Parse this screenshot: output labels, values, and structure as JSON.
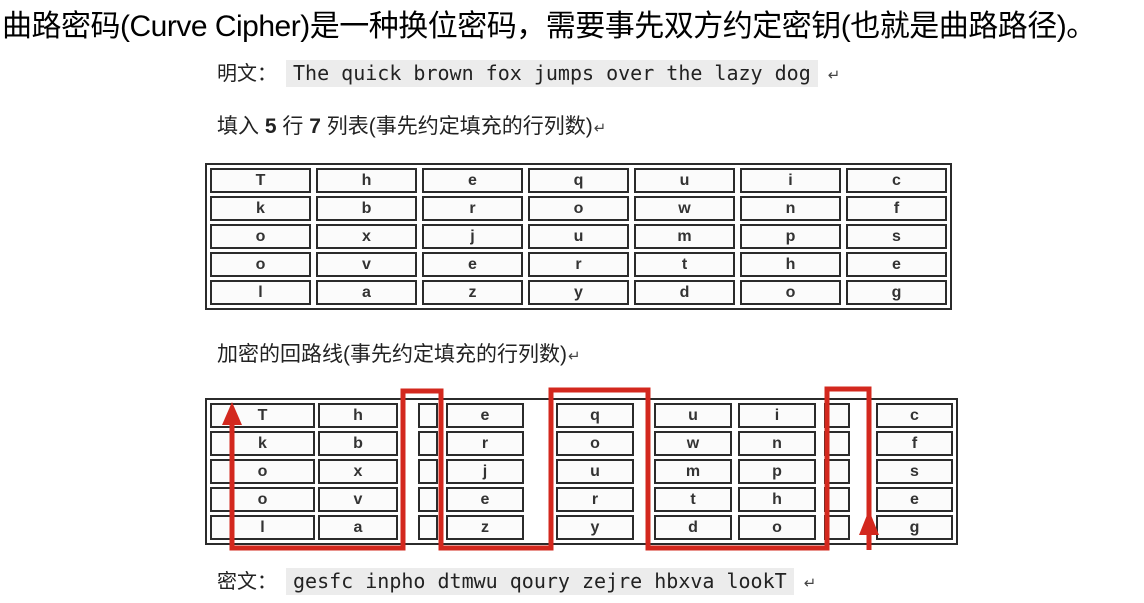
{
  "title": "曲路密码(Curve Cipher)是一种换位密码，需要事先双方约定密钥(也就是曲路路径)。",
  "plaintext": {
    "label": "明文：",
    "value": "The quick brown fox jumps over the lazy dog",
    "return_mark": "↵"
  },
  "fill_heading": {
    "prefix": "填入 ",
    "rows": "5",
    "mid": " 行 ",
    "cols": "7",
    "suffix": " 列表(事先约定填充的行列数)",
    "return_mark": "↵"
  },
  "route_heading": {
    "text": "加密的回路线(事先约定填充的行列数)",
    "return_mark": "↵"
  },
  "ciphertext": {
    "label": "密文：",
    "value": "gesfc inpho dtmwu qoury zejre hbxva lookT",
    "return_mark": "↵"
  },
  "grid": {
    "rows": [
      [
        "T",
        "h",
        "e",
        "q",
        "u",
        "i",
        "c"
      ],
      [
        "k",
        "b",
        "r",
        "o",
        "w",
        "n",
        "f"
      ],
      [
        "o",
        "x",
        "j",
        "u",
        "m",
        "p",
        "s"
      ],
      [
        "o",
        "v",
        "e",
        "r",
        "t",
        "h",
        "e"
      ],
      [
        "l",
        "a",
        "z",
        "y",
        "d",
        "o",
        "g"
      ]
    ]
  },
  "route_path": {
    "color": "#d3281e",
    "description": "red serpentine route: up column 7, down column 6, up column 5, down column 4, up column 3, down column 2, up column 1"
  }
}
